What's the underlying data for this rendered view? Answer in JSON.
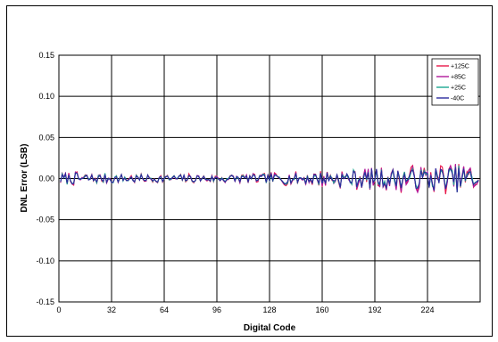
{
  "chart_data": {
    "type": "line",
    "xlabel": "Digital Code",
    "ylabel": "DNL Error (LSB)",
    "xlim": [
      0,
      256
    ],
    "ylim": [
      -0.15,
      0.15
    ],
    "x_ticks": [
      0,
      32,
      64,
      96,
      128,
      160,
      192,
      224
    ],
    "x_tick_labels": [
      "0",
      "32",
      "64",
      "96",
      "128",
      "160",
      "192",
      "224"
    ],
    "y_ticks": [
      0.15,
      0.1,
      0.05,
      0.0,
      -0.05,
      -0.1,
      -0.15
    ],
    "y_tick_labels": [
      "0.15",
      "0.10",
      "0.05",
      "0.00",
      "-0.05",
      "-0.10",
      "-0.15"
    ],
    "grid": true,
    "legend_position": "top-right",
    "series": [
      {
        "name": "+125C",
        "color": "#e8174a",
        "envelope": [
          [
            0,
            0.01
          ],
          [
            64,
            0.006
          ],
          [
            128,
            0.008
          ],
          [
            160,
            0.012
          ],
          [
            192,
            0.016
          ],
          [
            224,
            0.02
          ],
          [
            256,
            0.022
          ]
        ],
        "seed": 11
      },
      {
        "name": "+85C",
        "color": "#b0179a",
        "envelope": [
          [
            0,
            0.009
          ],
          [
            64,
            0.005
          ],
          [
            128,
            0.007
          ],
          [
            160,
            0.011
          ],
          [
            192,
            0.015
          ],
          [
            224,
            0.018
          ],
          [
            256,
            0.02
          ]
        ],
        "seed": 23
      },
      {
        "name": "+25C",
        "color": "#1aa890",
        "envelope": [
          [
            0,
            0.008
          ],
          [
            64,
            0.005
          ],
          [
            128,
            0.006
          ],
          [
            160,
            0.01
          ],
          [
            192,
            0.013
          ],
          [
            224,
            0.016
          ],
          [
            256,
            0.018
          ]
        ],
        "seed": 37
      },
      {
        "name": "-40C",
        "color": "#2b2b9e",
        "envelope": [
          [
            0,
            0.008
          ],
          [
            64,
            0.005
          ],
          [
            128,
            0.006
          ],
          [
            160,
            0.01
          ],
          [
            192,
            0.013
          ],
          [
            224,
            0.016
          ],
          [
            256,
            0.018
          ]
        ],
        "seed": 53
      }
    ]
  }
}
